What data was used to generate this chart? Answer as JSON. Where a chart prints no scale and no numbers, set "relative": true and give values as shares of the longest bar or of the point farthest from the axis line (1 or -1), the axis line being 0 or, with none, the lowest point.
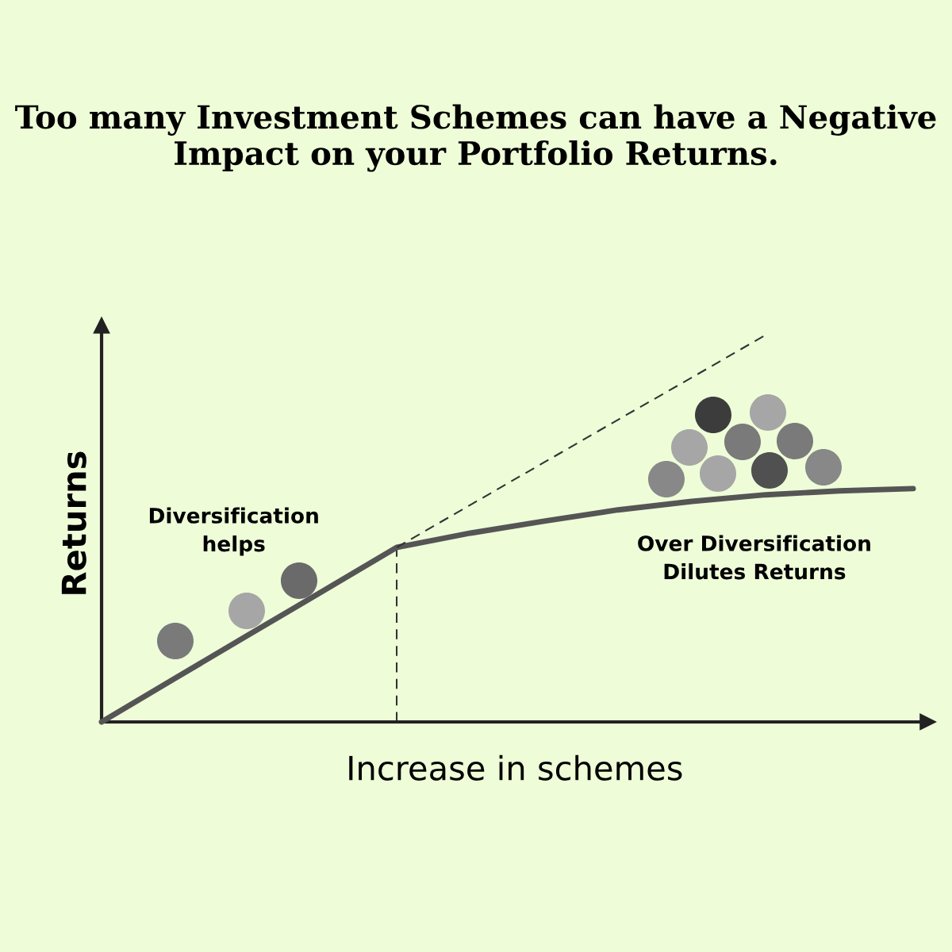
{
  "chart_data": {
    "type": "line",
    "title": "Too many Investment Schemes can have a Negative Impact on your Portfolio Returns.",
    "xlabel": "Increase in schemes",
    "ylabel": "Returns",
    "relative": true,
    "tick_labels": false,
    "legend": false,
    "marker": "none",
    "categories": [
      null,
      null,
      null,
      null,
      null,
      null,
      null,
      null,
      null,
      null,
      null,
      null
    ],
    "series": [
      {
        "color": "#555555",
        "line_style": "solid",
        "values": [
          0,
          0.113,
          0.226,
          0.338,
          0.451,
          0.488,
          0.519,
          0.548,
          0.57,
          0.587,
          0.597,
          0.603
        ]
      },
      {
        "color": "#333333",
        "line_style": "dashed",
        "values": [
          null,
          null,
          null,
          null,
          0.451,
          0.561,
          0.671,
          0.781,
          0.89,
          1.0,
          null,
          null
        ]
      }
    ],
    "annotations": [
      "Diversification\nhelps",
      "Over Diversification\nDilutes Returns"
    ]
  }
}
